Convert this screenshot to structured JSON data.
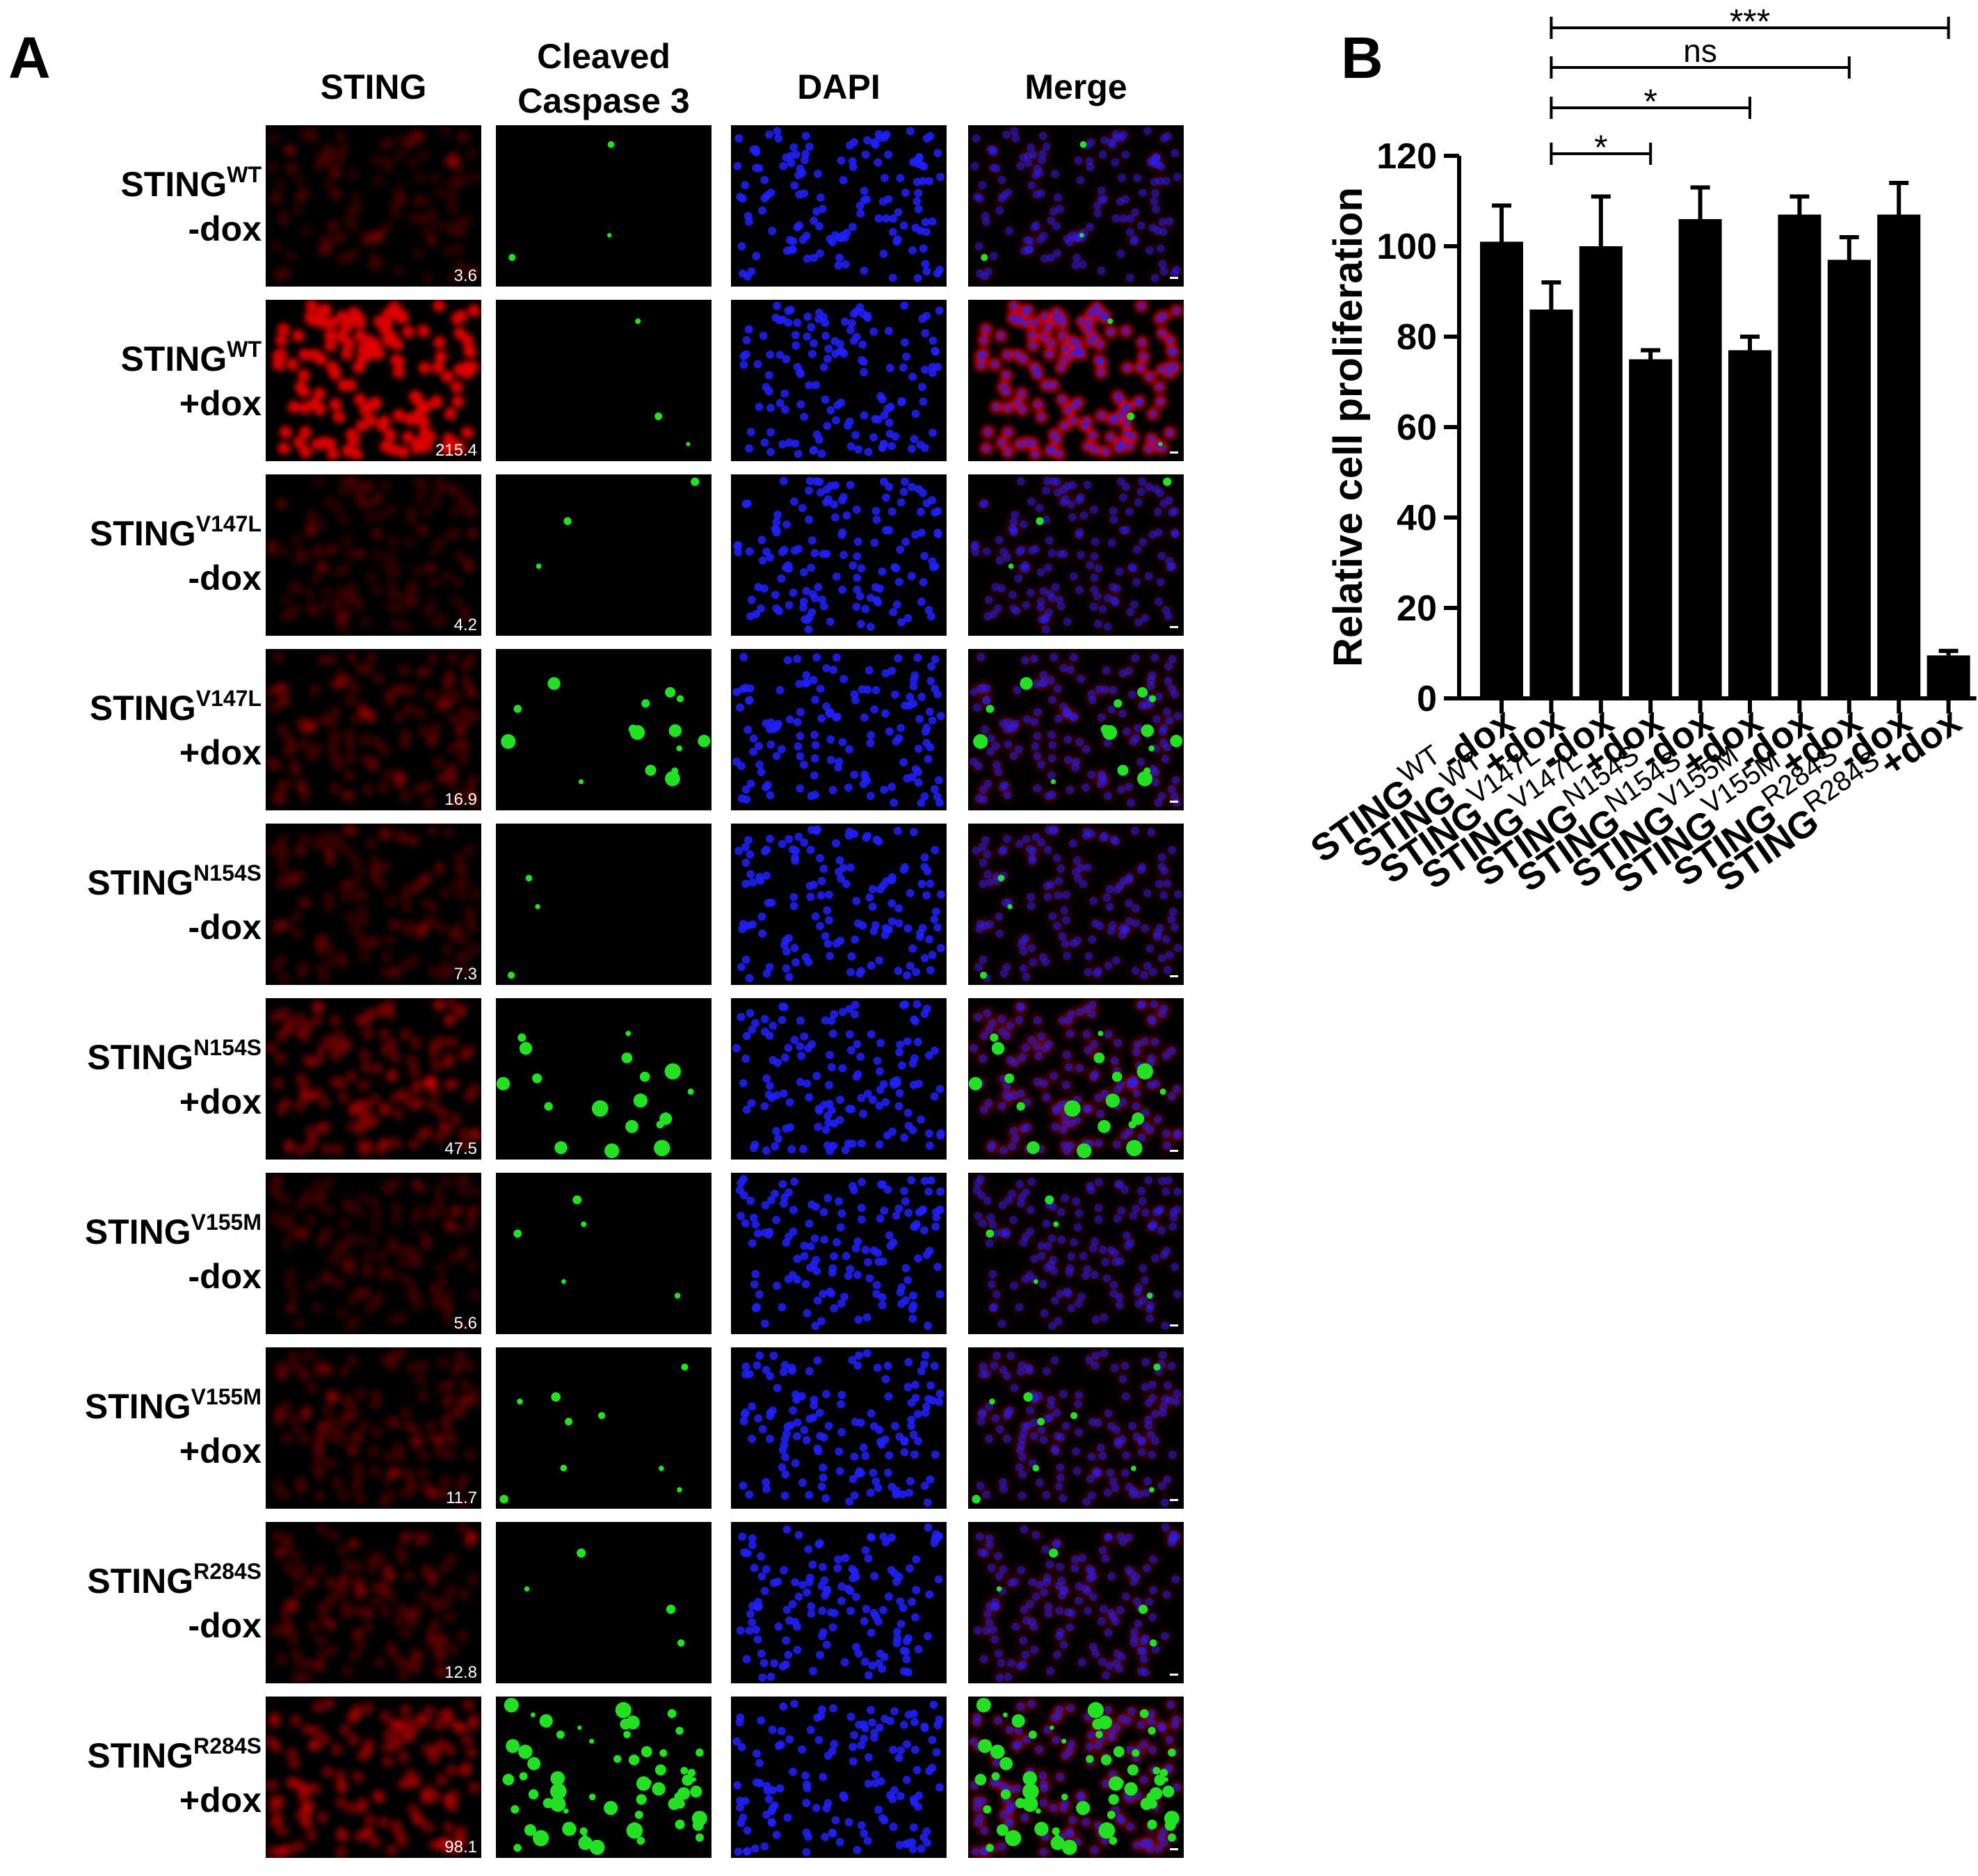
{
  "panel_a": {
    "letter": "A",
    "column_headers": [
      {
        "lines": [
          "STING"
        ]
      },
      {
        "lines": [
          "Cleaved",
          "Caspase 3"
        ]
      },
      {
        "lines": [
          "DAPI"
        ]
      },
      {
        "lines": [
          "Merge"
        ]
      }
    ],
    "rows": [
      {
        "base": "STING",
        "sup": "WT",
        "cond": "-dox",
        "sting_value": "3.6",
        "sting_intensity": 0.03,
        "caspase_level": 0.05
      },
      {
        "base": "STING",
        "sup": "WT",
        "cond": "+dox",
        "sting_value": "215.4",
        "sting_intensity": 1.0,
        "caspase_level": 0.05
      },
      {
        "base": "STING",
        "sup": "V147L",
        "cond": "-dox",
        "sting_value": "4.2",
        "sting_intensity": 0.04,
        "caspase_level": 0.05
      },
      {
        "base": "STING",
        "sup": "V147L",
        "cond": "+dox",
        "sting_value": "16.9",
        "sting_intensity": 0.12,
        "caspase_level": 0.25
      },
      {
        "base": "STING",
        "sup": "N154S",
        "cond": "-dox",
        "sting_value": "7.3",
        "sting_intensity": 0.07,
        "caspase_level": 0.05
      },
      {
        "base": "STING",
        "sup": "N154S",
        "cond": "+dox",
        "sting_value": "47.5",
        "sting_intensity": 0.25,
        "caspase_level": 0.3
      },
      {
        "base": "STING",
        "sup": "V155M",
        "cond": "-dox",
        "sting_value": "5.6",
        "sting_intensity": 0.05,
        "caspase_level": 0.08
      },
      {
        "base": "STING",
        "sup": "V155M",
        "cond": "+dox",
        "sting_value": "11.7",
        "sting_intensity": 0.1,
        "caspase_level": 0.15
      },
      {
        "base": "STING",
        "sup": "R284S",
        "cond": "-dox",
        "sting_value": "12.8",
        "sting_intensity": 0.11,
        "caspase_level": 0.06
      },
      {
        "base": "STING",
        "sup": "R284S",
        "cond": "+dox",
        "sting_value": "98.1",
        "sting_intensity": 0.35,
        "caspase_level": 1.0
      }
    ],
    "colors": {
      "sting": "#e00000",
      "caspase": "#22e022",
      "dapi": "#2020ff",
      "background": "#000000"
    }
  },
  "chart_data": {
    "type": "bar",
    "panel_letter": "B",
    "ylabel": "Relative cell proliferation",
    "ylim": [
      0,
      120
    ],
    "yticks": [
      "0",
      "20",
      "40",
      "60",
      "80",
      "100",
      "120"
    ],
    "categories": [
      {
        "base": "STING",
        "sup": "WT",
        "cond": "-dox"
      },
      {
        "base": "STING",
        "sup": "WT",
        "cond": "+dox"
      },
      {
        "base": "STING",
        "sup": "V147L",
        "cond": "-dox"
      },
      {
        "base": "STING",
        "sup": "V147L",
        "cond": "+dox"
      },
      {
        "base": "STING",
        "sup": "N154S",
        "cond": "-dox"
      },
      {
        "base": "STING",
        "sup": "N154S",
        "cond": "+dox"
      },
      {
        "base": "STING",
        "sup": "V155M",
        "cond": "-dox"
      },
      {
        "base": "STING",
        "sup": "V155M",
        "cond": "+dox"
      },
      {
        "base": "STING",
        "sup": "R284S",
        "cond": "-dox"
      },
      {
        "base": "STING",
        "sup": "R284S",
        "cond": "+dox"
      }
    ],
    "values": [
      101,
      86,
      100,
      75,
      106,
      77,
      107,
      97,
      107,
      9.5
    ],
    "errors": [
      8,
      6,
      11,
      2,
      7,
      3,
      4,
      5,
      7,
      1
    ],
    "significance": [
      {
        "from": 1,
        "to": 3,
        "label": "*"
      },
      {
        "from": 1,
        "to": 5,
        "label": "*"
      },
      {
        "from": 1,
        "to": 7,
        "label": "ns"
      },
      {
        "from": 1,
        "to": 9,
        "label": "***"
      }
    ],
    "bar_color": "#000000"
  }
}
